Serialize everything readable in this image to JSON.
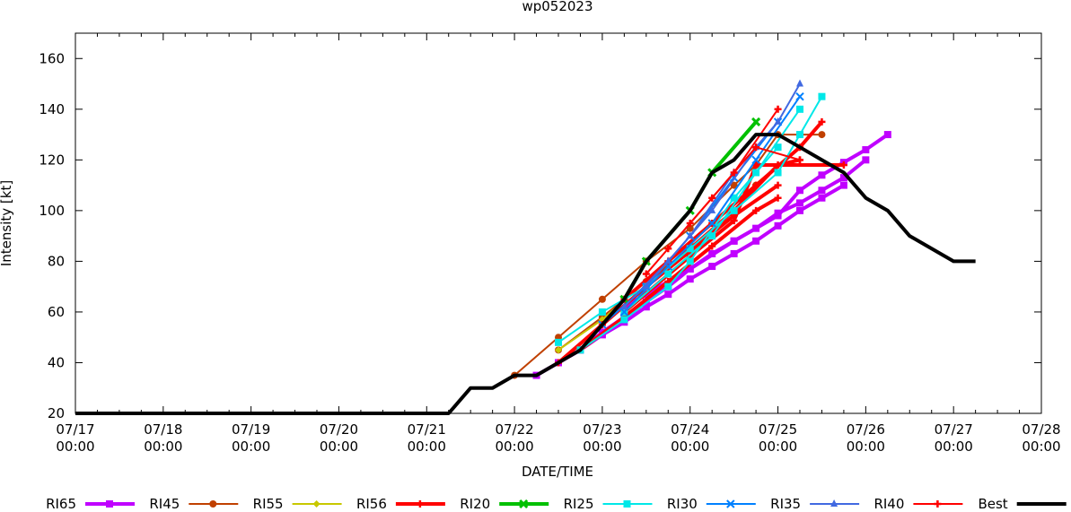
{
  "chart_data": {
    "type": "line",
    "title": "wp052023",
    "xlabel": "DATE/TIME",
    "ylabel": "Intensity [kt]",
    "xlim": [
      0,
      11
    ],
    "ylim": [
      20,
      170
    ],
    "x_unit": "days since 07/17 00:00",
    "yticks": [
      20,
      40,
      60,
      80,
      100,
      120,
      140,
      160
    ],
    "xticks": [
      {
        "d": "07/17",
        "t": "00:00"
      },
      {
        "d": "07/18",
        "t": "00:00"
      },
      {
        "d": "07/19",
        "t": "00:00"
      },
      {
        "d": "07/20",
        "t": "00:00"
      },
      {
        "d": "07/21",
        "t": "00:00"
      },
      {
        "d": "07/22",
        "t": "00:00"
      },
      {
        "d": "07/23",
        "t": "00:00"
      },
      {
        "d": "07/24",
        "t": "00:00"
      },
      {
        "d": "07/25",
        "t": "00:00"
      },
      {
        "d": "07/26",
        "t": "00:00"
      },
      {
        "d": "07/27",
        "t": "00:00"
      },
      {
        "d": "07/28",
        "t": "00:00"
      }
    ],
    "legend_position": "bottom",
    "series": [
      {
        "name": "RI65",
        "color": "#c000ff",
        "width": 4,
        "marker": "square",
        "tracks": [
          [
            [
              5.25,
              35
            ],
            [
              5.5,
              40
            ],
            [
              5.75,
              45
            ],
            [
              6,
              51
            ],
            [
              6.25,
              56
            ],
            [
              6.5,
              62
            ],
            [
              6.75,
              67
            ],
            [
              7,
              73
            ],
            [
              7.25,
              78
            ],
            [
              7.5,
              83
            ],
            [
              7.75,
              88
            ],
            [
              8,
              94
            ],
            [
              8.25,
              100
            ],
            [
              8.5,
              105
            ],
            [
              8.75,
              110
            ]
          ],
          [
            [
              5.5,
              40
            ],
            [
              5.75,
              45
            ],
            [
              6,
              52
            ],
            [
              6.25,
              58
            ],
            [
              6.5,
              64
            ],
            [
              6.75,
              70
            ],
            [
              7,
              77
            ],
            [
              7.25,
              83
            ],
            [
              7.5,
              88
            ],
            [
              7.75,
              93
            ],
            [
              8,
              99
            ],
            [
              8.25,
              103
            ],
            [
              8.5,
              108
            ],
            [
              8.75,
              113
            ],
            [
              9,
              120
            ]
          ],
          [
            [
              6,
              57
            ],
            [
              6.5,
              67
            ],
            [
              7,
              77
            ],
            [
              7.5,
              88
            ],
            [
              8,
              98
            ],
            [
              8.25,
              108
            ],
            [
              8.5,
              114
            ],
            [
              8.75,
              119
            ],
            [
              9,
              124
            ],
            [
              9.25,
              130
            ]
          ]
        ]
      },
      {
        "name": "RI45",
        "color": "#c04000",
        "width": 2,
        "marker": "circle",
        "tracks": [
          [
            [
              5,
              35
            ],
            [
              5.5,
              50
            ],
            [
              6,
              65
            ],
            [
              6.5,
              80
            ],
            [
              7,
              93
            ],
            [
              7.5,
              110
            ],
            [
              7.75,
              118
            ],
            [
              8,
              130
            ],
            [
              8.5,
              130
            ]
          ],
          [
            [
              5.5,
              45
            ],
            [
              6,
              58
            ],
            [
              6.5,
              72
            ],
            [
              7,
              85
            ],
            [
              7.5,
              100
            ],
            [
              7.75,
              110
            ]
          ]
        ]
      },
      {
        "name": "RI55",
        "color": "#c8c800",
        "width": 2,
        "marker": "diamond",
        "tracks": [
          [
            [
              5.5,
              45
            ],
            [
              6,
              57
            ],
            [
              6.5,
              72
            ],
            [
              7,
              87
            ],
            [
              7.25,
              95
            ]
          ]
        ]
      },
      {
        "name": "RI56",
        "color": "#ff0000",
        "width": 4,
        "marker": "plus",
        "tracks": [
          [
            [
              5.5,
              40
            ],
            [
              6,
              55
            ],
            [
              6.5,
              70
            ],
            [
              7,
              84
            ],
            [
              7.5,
              98
            ],
            [
              8,
              110
            ]
          ],
          [
            [
              5.75,
              45
            ],
            [
              6.25,
              58
            ],
            [
              6.75,
              72
            ],
            [
              7.25,
              86
            ],
            [
              7.75,
              100
            ],
            [
              8,
              105
            ]
          ],
          [
            [
              6,
              55
            ],
            [
              6.5,
              70
            ],
            [
              7,
              85
            ],
            [
              7.5,
              100
            ],
            [
              8,
              118
            ],
            [
              8.25,
              120
            ]
          ],
          [
            [
              6.25,
              65
            ],
            [
              6.75,
              80
            ],
            [
              7.25,
              95
            ],
            [
              7.75,
              110
            ],
            [
              8.25,
              125
            ],
            [
              8.5,
              135
            ]
          ],
          [
            [
              6.25,
              60
            ],
            [
              7,
              82
            ],
            [
              7.5,
              96
            ],
            [
              7.75,
              118
            ],
            [
              8.75,
              118
            ]
          ]
        ]
      },
      {
        "name": "RI20",
        "color": "#00c000",
        "width": 4,
        "marker": "xbox",
        "tracks": [
          [
            [
              6.25,
              65
            ],
            [
              6.5,
              80
            ],
            [
              7,
              100
            ],
            [
              7.25,
              115
            ],
            [
              7.75,
              135
            ]
          ]
        ]
      },
      {
        "name": "RI25",
        "color": "#00e8e8",
        "width": 2,
        "marker": "fsquare",
        "tracks": [
          [
            [
              5.5,
              48
            ],
            [
              6,
              60
            ],
            [
              6.5,
              70
            ],
            [
              7,
              85
            ],
            [
              7.5,
              100
            ],
            [
              8,
              115
            ],
            [
              8.25,
              130
            ],
            [
              8.5,
              145
            ]
          ],
          [
            [
              5.75,
              45
            ],
            [
              6.25,
              57
            ],
            [
              6.75,
              70
            ],
            [
              7,
              80
            ],
            [
              7.5,
              105
            ],
            [
              8,
              125
            ]
          ],
          [
            [
              6.25,
              60
            ],
            [
              6.75,
              75
            ],
            [
              7.25,
              90
            ],
            [
              7.75,
              115
            ],
            [
              8.25,
              140
            ]
          ]
        ]
      },
      {
        "name": "RI30",
        "color": "#0080ff",
        "width": 2,
        "marker": "x",
        "tracks": [
          [
            [
              6.25,
              60
            ],
            [
              6.75,
              78
            ],
            [
              7.25,
              95
            ],
            [
              7.75,
              120
            ],
            [
              8.25,
              145
            ]
          ],
          [
            [
              6,
              55
            ],
            [
              6.5,
              70
            ],
            [
              7,
              90
            ],
            [
              7.5,
              113
            ],
            [
              8,
              135
            ]
          ]
        ]
      },
      {
        "name": "RI35",
        "color": "#4169e1",
        "width": 2,
        "marker": "triangle",
        "tracks": [
          [
            [
              6.5,
              70
            ],
            [
              7,
              90
            ],
            [
              7.5,
              115
            ],
            [
              8,
              135
            ],
            [
              8.25,
              150
            ]
          ],
          [
            [
              6.25,
              62
            ],
            [
              6.75,
              80
            ],
            [
              7.25,
              100
            ],
            [
              7.75,
              125
            ]
          ]
        ]
      },
      {
        "name": "RI40",
        "color": "#ff0000",
        "width": 2,
        "marker": "plus",
        "tracks": [
          [
            [
              6.5,
              75
            ],
            [
              7,
              95
            ],
            [
              7.5,
              115
            ],
            [
              8,
              140
            ]
          ],
          [
            [
              6.75,
              85
            ],
            [
              7.25,
              105
            ],
            [
              7.75,
              125
            ],
            [
              8.25,
              120
            ]
          ]
        ]
      },
      {
        "name": "Best",
        "color": "#000000",
        "width": 4,
        "marker": "none",
        "tracks": [
          [
            [
              0,
              20
            ],
            [
              4.25,
              20
            ],
            [
              4.5,
              30
            ],
            [
              4.75,
              30
            ],
            [
              5,
              35
            ],
            [
              5.25,
              35
            ],
            [
              5.5,
              40
            ],
            [
              5.75,
              45
            ],
            [
              6,
              55
            ],
            [
              6.25,
              65
            ],
            [
              6.5,
              80
            ],
            [
              6.75,
              90
            ],
            [
              7,
              100
            ],
            [
              7.25,
              115
            ],
            [
              7.5,
              120
            ],
            [
              7.75,
              130
            ],
            [
              8,
              130
            ],
            [
              8.25,
              125
            ],
            [
              8.5,
              120
            ],
            [
              8.75,
              115
            ],
            [
              9,
              105
            ],
            [
              9.25,
              100
            ],
            [
              9.5,
              90
            ],
            [
              9.75,
              85
            ],
            [
              10,
              80
            ],
            [
              10.25,
              80
            ]
          ]
        ]
      }
    ]
  }
}
